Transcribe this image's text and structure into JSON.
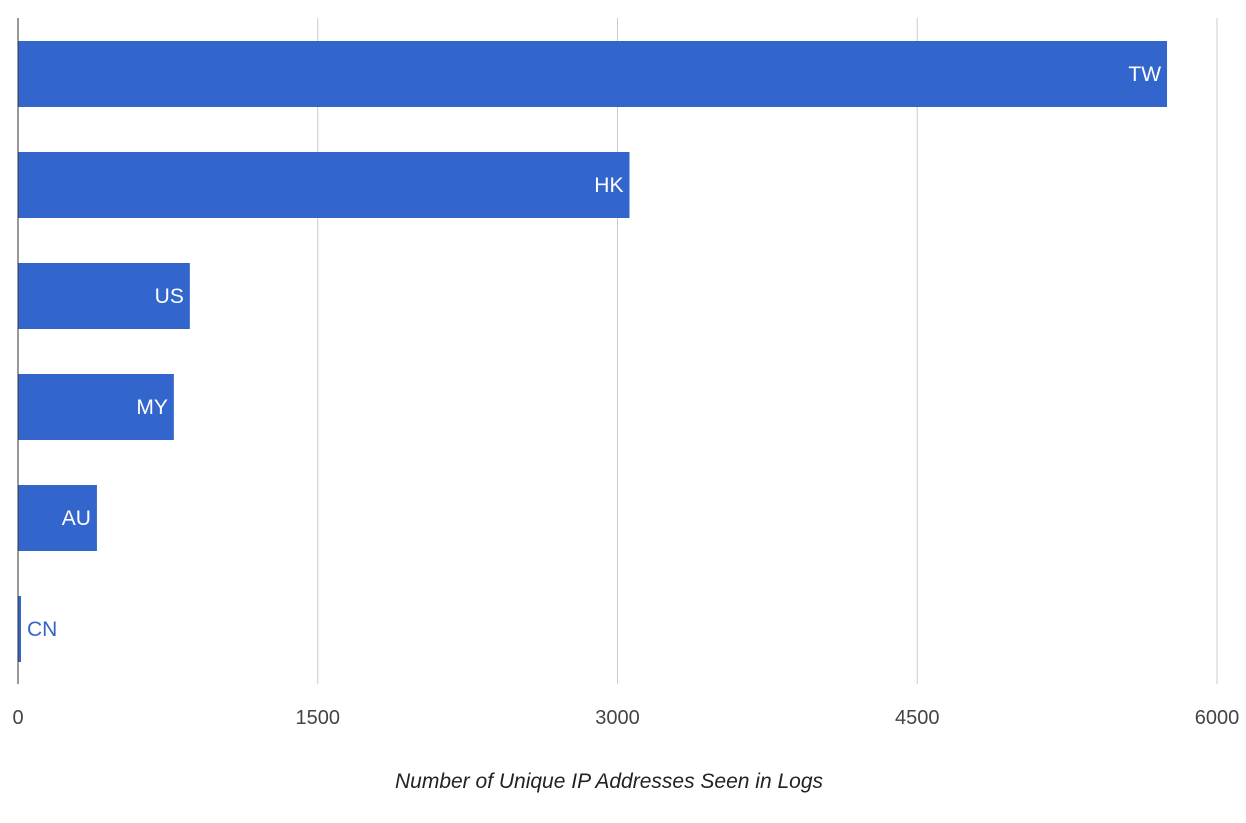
{
  "chart_data": {
    "type": "bar",
    "orientation": "horizontal",
    "categories": [
      "TW",
      "HK",
      "US",
      "MY",
      "AU",
      "CN"
    ],
    "values": [
      5750,
      3060,
      860,
      780,
      395,
      15
    ],
    "xlabel": "Number of Unique IP Addresses Seen in Logs",
    "ylabel": "",
    "xlim": [
      0,
      6000
    ],
    "xticks": [
      "0",
      "1500",
      "3000",
      "4500",
      "6000"
    ],
    "xtick_values": [
      0,
      1500,
      3000,
      4500,
      6000
    ],
    "grid": "vertical",
    "legend": "none",
    "data_labels": "category names inside bar end",
    "colors": {
      "bar": "#3366cc",
      "label_inside": "#ffffff",
      "label_outside": "#3366cc",
      "grid": "#cccccc",
      "axis": "#333333"
    }
  }
}
